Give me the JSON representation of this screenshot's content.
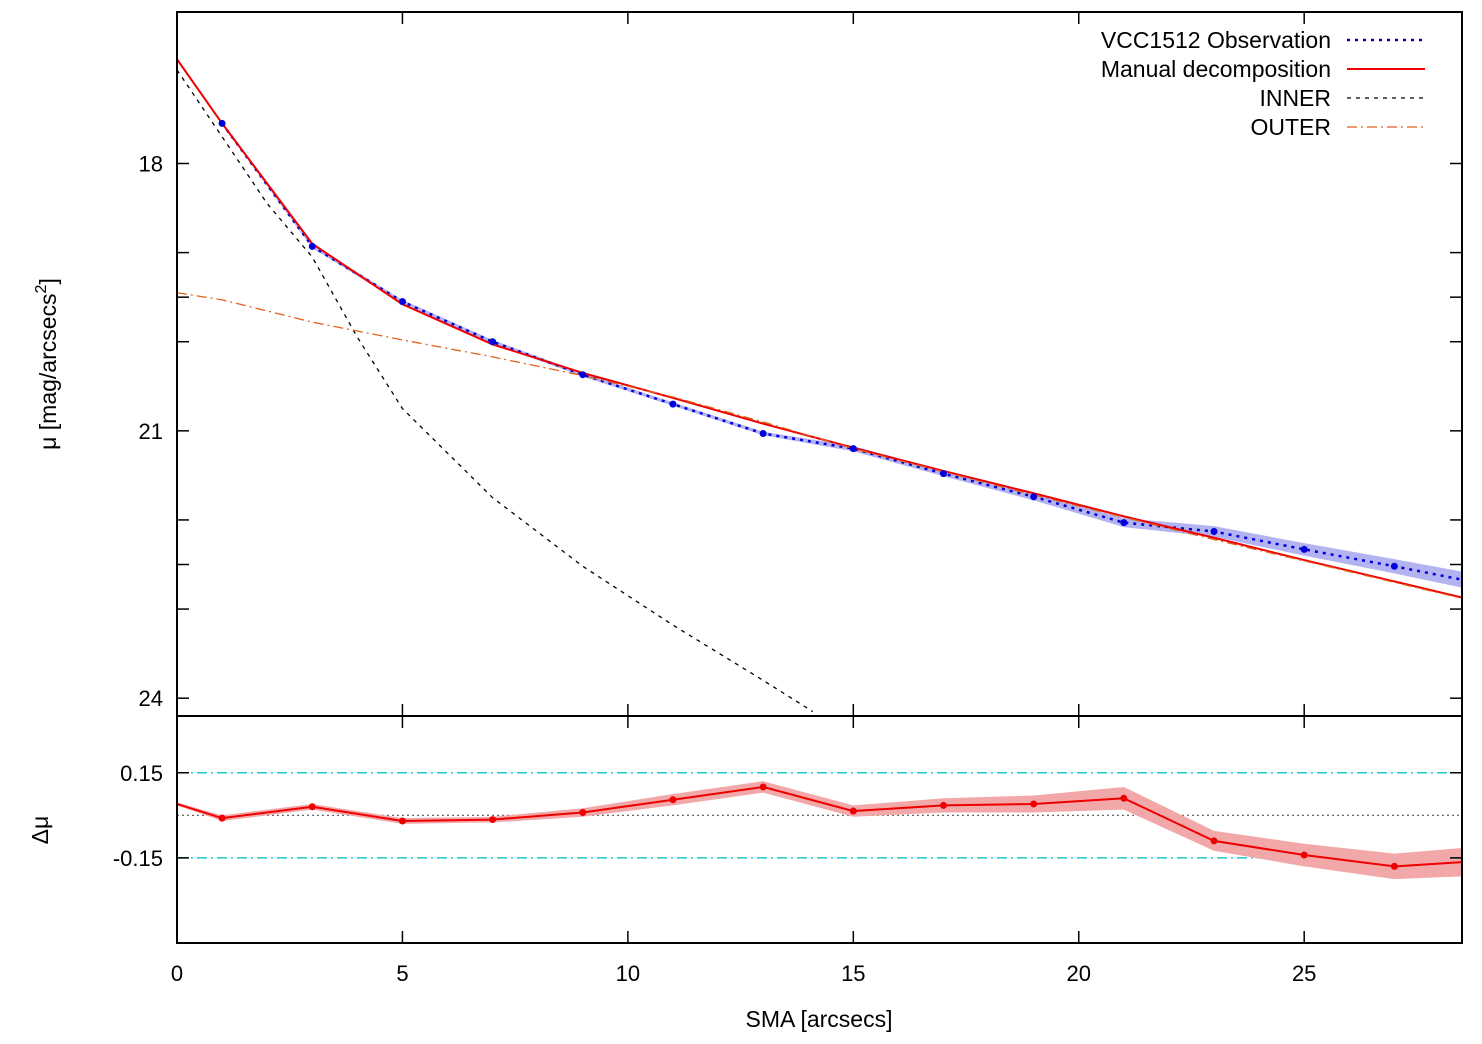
{
  "chart_data": [
    {
      "type": "line",
      "panel": "main",
      "ylabel": "μ [mag/arcsecs²]",
      "ylabel_base": "μ [mag/arcsecs",
      "ylabel_sup": "2",
      "ylabel_end": "]",
      "xlim": [
        0,
        28.5
      ],
      "ylim": [
        24.2,
        16.3
      ],
      "y_inverted": true,
      "xticks": [
        0,
        5,
        10,
        15,
        20,
        25
      ],
      "yticks_labeled": [
        18,
        21,
        24
      ],
      "yticks_minor": [
        19,
        19.5,
        20,
        22,
        22.5,
        23
      ],
      "ytick_labels": [
        "18",
        "21",
        "24"
      ],
      "legend_position": "top-right",
      "series": [
        {
          "name": "VCC1512 Observation",
          "style": "dotted-with-points",
          "color": "#0000dd",
          "band_color": "#b3b3f2",
          "x": [
            1,
            3,
            5,
            7,
            9,
            11,
            13,
            15,
            17,
            19,
            21,
            23,
            25,
            27,
            28.5
          ],
          "y": [
            17.55,
            18.93,
            19.55,
            20.0,
            20.37,
            20.7,
            21.03,
            21.2,
            21.48,
            21.74,
            22.03,
            22.13,
            22.33,
            22.52,
            22.67
          ],
          "band_halfwidth": [
            0.01,
            0.02,
            0.02,
            0.02,
            0.02,
            0.02,
            0.02,
            0.03,
            0.03,
            0.04,
            0.05,
            0.06,
            0.07,
            0.08,
            0.09
          ]
        },
        {
          "name": "Manual decomposition",
          "style": "solid",
          "color": "#ee0000",
          "x": [
            0,
            1,
            3,
            5,
            7,
            9,
            11,
            13,
            15,
            17,
            19,
            21,
            23,
            25,
            27,
            28.5
          ],
          "y": [
            16.83,
            17.55,
            18.9,
            19.58,
            20.03,
            20.35,
            20.63,
            20.92,
            21.19,
            21.45,
            21.7,
            21.96,
            22.2,
            22.45,
            22.69,
            22.87
          ]
        },
        {
          "name": "INNER",
          "style": "dashed",
          "color": "#000000",
          "x": [
            0,
            1,
            2,
            3,
            4,
            5,
            7,
            9,
            11,
            13,
            14.1
          ],
          "y": [
            16.95,
            17.7,
            18.45,
            19.05,
            19.95,
            20.75,
            21.75,
            22.52,
            23.18,
            23.8,
            24.15
          ]
        },
        {
          "name": "OUTER",
          "style": "dash-dot",
          "color": "#e0601e",
          "x": [
            0,
            1,
            3,
            5,
            7,
            9,
            11,
            13,
            15,
            17,
            19,
            21,
            23,
            25,
            27,
            28.5
          ],
          "y": [
            19.45,
            19.53,
            19.78,
            19.98,
            20.17,
            20.38,
            20.62,
            20.9,
            21.2,
            21.46,
            21.72,
            21.97,
            22.22,
            22.46,
            22.7,
            22.88
          ]
        }
      ]
    },
    {
      "type": "line",
      "panel": "residual",
      "ylabel": "Δμ",
      "xlabel": "SMA [arcsecs]",
      "xlim": [
        0,
        28.5
      ],
      "ylim": [
        -0.45,
        0.35
      ],
      "xticks": [
        0,
        5,
        10,
        15,
        20,
        25
      ],
      "xtick_labels": [
        "0",
        "5",
        "10",
        "15",
        "20",
        "25"
      ],
      "yticks": [
        0.15,
        -0.15
      ],
      "ytick_labels": [
        "0.15",
        "-0.15"
      ],
      "reference_lines": [
        {
          "y": 0.15,
          "style": "dash-dot",
          "color": "#22c8c8"
        },
        {
          "y": -0.15,
          "style": "dash-dot",
          "color": "#22c8c8"
        },
        {
          "y": 0,
          "style": "dotted",
          "color": "#555555"
        }
      ],
      "series": [
        {
          "name": "residual",
          "style": "solid-with-points",
          "color": "#ee0000",
          "band_color": "#f2a8a8",
          "x": [
            0,
            1,
            3,
            5,
            7,
            9,
            11,
            13,
            15,
            17,
            19,
            21,
            23,
            25,
            27,
            28.5
          ],
          "y": [
            0.04,
            -0.01,
            0.03,
            -0.02,
            -0.015,
            0.01,
            0.055,
            0.1,
            0.015,
            0.035,
            0.04,
            0.06,
            -0.09,
            -0.14,
            -0.18,
            -0.165
          ],
          "band_halfwidth": [
            0.005,
            0.01,
            0.01,
            0.01,
            0.01,
            0.015,
            0.02,
            0.02,
            0.02,
            0.025,
            0.03,
            0.04,
            0.035,
            0.04,
            0.045,
            0.05
          ]
        }
      ]
    }
  ]
}
